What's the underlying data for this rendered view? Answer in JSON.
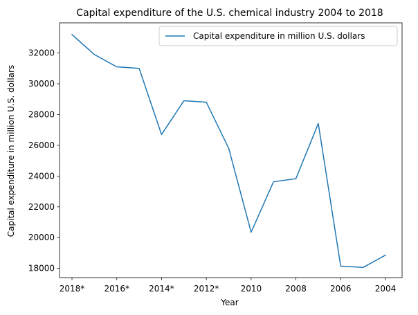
{
  "chart_data": {
    "type": "line",
    "title": "Capital expenditure of the U.S. chemical industry 2004 to 2018",
    "xlabel": "Year",
    "ylabel": "Capital expenditure in million U.S. dollars",
    "categories": [
      "2018*",
      "2017*",
      "2016*",
      "2015*",
      "2014*",
      "2013*",
      "2012*",
      "2011",
      "2010",
      "2009",
      "2008",
      "2007",
      "2006",
      "2005",
      "2004"
    ],
    "x_tick_labels": [
      "2018*",
      "2016*",
      "2014*",
      "2012*",
      "2010",
      "2008",
      "2006",
      "2004"
    ],
    "series": [
      {
        "name": "Capital expenditure in million U.S. dollars",
        "color": "#1f77b4",
        "values": [
          33200,
          31900,
          31100,
          31000,
          26700,
          28900,
          28800,
          25800,
          20350,
          23630,
          23830,
          27420,
          18150,
          18060,
          18860
        ]
      }
    ],
    "ylim": [
      17400,
      33960
    ],
    "y_ticks": [
      18000,
      20000,
      22000,
      24000,
      26000,
      28000,
      30000,
      32000
    ],
    "grid": false,
    "legend_position": "top-right"
  }
}
